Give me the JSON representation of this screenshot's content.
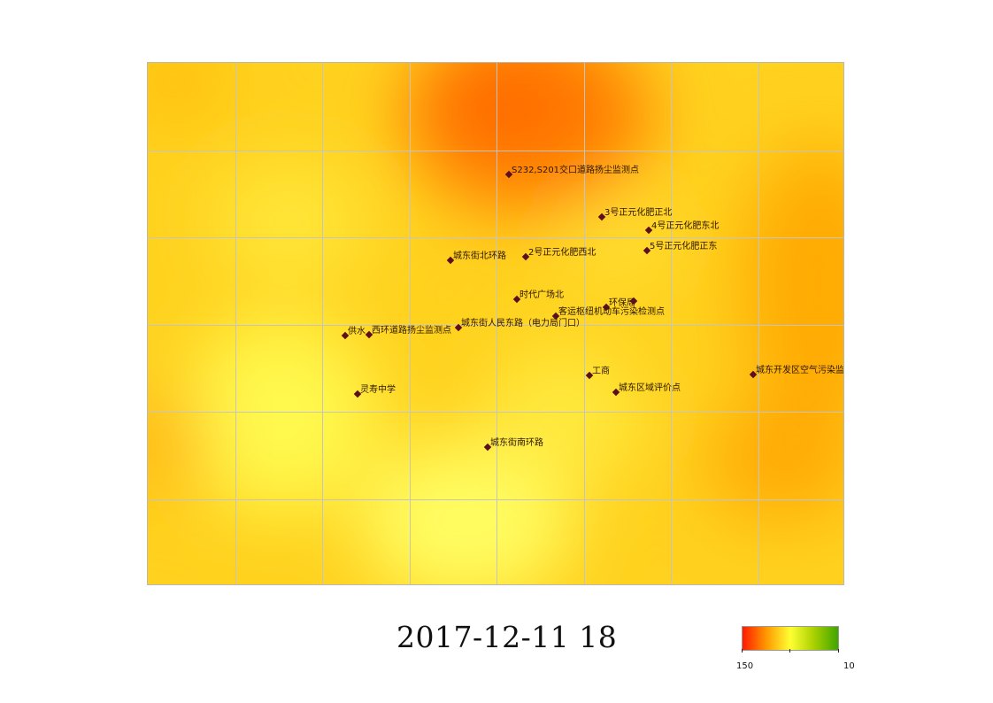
{
  "map": {
    "color_min": "#ffff66",
    "color_mid": "#ffb300",
    "color_max": "#ff6e00",
    "stations": [
      {
        "id": "s1",
        "label": "S232,S201交口道路扬尘监测点"
      },
      {
        "id": "s2",
        "label": "3号正元化肥正北"
      },
      {
        "id": "s3",
        "label": "4号正元化肥东北"
      },
      {
        "id": "s4",
        "label": "城东街北环路"
      },
      {
        "id": "s5",
        "label": "2号正元化肥西北"
      },
      {
        "id": "s6",
        "label": "5号正元化肥正东"
      },
      {
        "id": "s7",
        "label": "时代广场北"
      },
      {
        "id": "s8",
        "label": "环保局"
      },
      {
        "id": "s9",
        "label": ""
      },
      {
        "id": "s10",
        "label": "客运枢纽机动车污染检测点"
      },
      {
        "id": "s11",
        "label": "城东街人民东路（电力局门口）"
      },
      {
        "id": "s12",
        "label": "供水"
      },
      {
        "id": "s13",
        "label": "西环道路扬尘监测点"
      },
      {
        "id": "s14",
        "label": "工商"
      },
      {
        "id": "s15",
        "label": "城东开发区空气污染监测点"
      },
      {
        "id": "s16",
        "label": "灵寿中学"
      },
      {
        "id": "s17",
        "label": "城东区域评价点"
      },
      {
        "id": "s18",
        "label": "城东街南环路"
      }
    ]
  },
  "timestamp": "2017-12-11  18",
  "legend": {
    "min_label": "150",
    "max_label": "10",
    "colors": [
      "#ff1a00",
      "#ff9900",
      "#ffff33",
      "#a8d000",
      "#3fa500"
    ]
  }
}
